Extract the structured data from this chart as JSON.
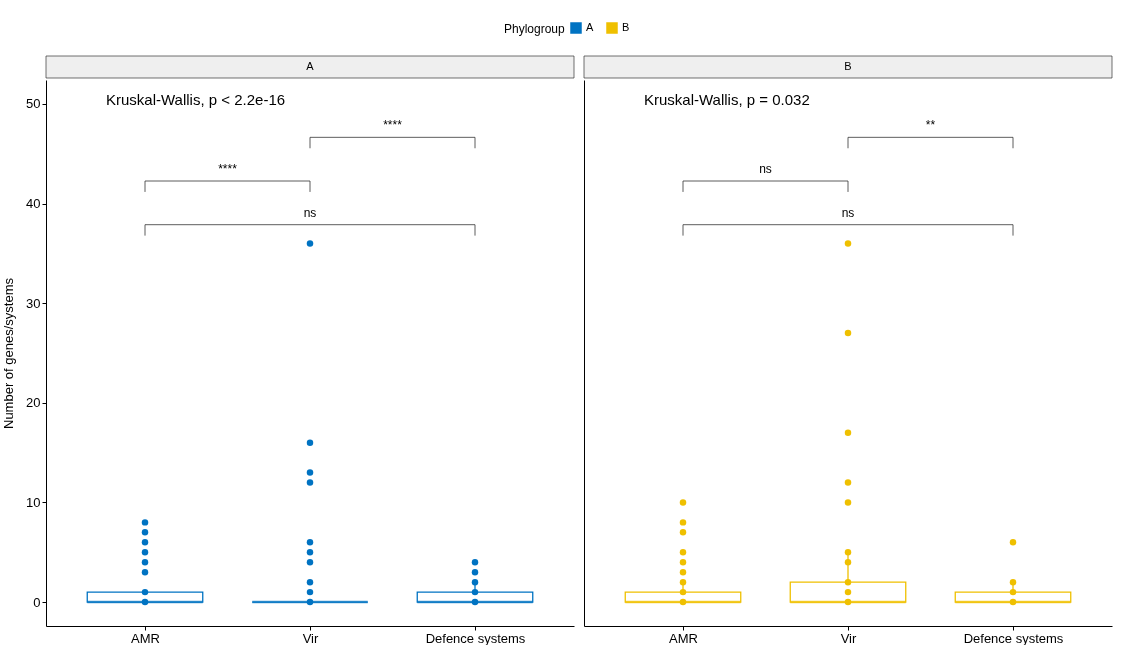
{
  "chart_data": [
    {
      "type": "box",
      "title": "A",
      "ylabel": "Number of genes/systems",
      "legend": "top",
      "legend_title": "Phylogroup",
      "categories": [
        "AMR",
        "Vir",
        "Defence systems"
      ],
      "ylim": [
        -2.4,
        52.4
      ],
      "yticks": [
        0,
        10,
        20,
        30,
        40,
        50
      ],
      "annotations": [
        "Kruskal-Wallis, p < 2.2e-16",
        "****",
        "****",
        "ns"
      ],
      "series": [
        {
          "name": "A",
          "color": "#0073c2",
          "type": "box",
          "boxes": [
            {
              "low": 0,
              "q1": 0,
              "median": 0,
              "q3": 1,
              "high": 1
            },
            {
              "low": 0,
              "q1": 0,
              "median": 0,
              "q3": 0,
              "high": 0
            },
            {
              "low": 0,
              "q1": 0,
              "median": 0,
              "q3": 1,
              "high": 2
            }
          ]
        },
        {
          "type": "scatter",
          "color": "#0073c2",
          "x": [
            "AMR",
            "AMR",
            "AMR",
            "AMR",
            "AMR",
            "AMR",
            "AMR",
            "AMR",
            "Vir",
            "Vir",
            "Vir",
            "Vir",
            "Vir",
            "Vir",
            "Vir",
            "Vir",
            "Vir",
            "Vir",
            "Defence systems",
            "Defence systems",
            "Defence systems",
            "Defence systems",
            "Defence systems"
          ],
          "values": [
            0,
            1,
            3,
            4,
            5,
            6,
            7,
            8,
            0,
            1,
            2,
            4,
            5,
            6,
            12,
            13,
            16,
            36,
            0,
            1,
            2,
            3,
            4
          ]
        }
      ]
    },
    {
      "type": "box",
      "title": "B",
      "tick_labels": "x",
      "categories": [
        "AMR",
        "Vir",
        "Defence systems"
      ],
      "ylim": [
        -2.4,
        52.4
      ],
      "yticks": [
        0,
        10,
        20,
        30,
        40,
        50
      ],
      "annotations": [
        "Kruskal-Wallis, p = 0.032",
        "ns",
        "**",
        "ns"
      ],
      "series": [
        {
          "name": "B",
          "color": "#efc000",
          "type": "box",
          "boxes": [
            {
              "low": 0,
              "q1": 0,
              "median": 0,
              "q3": 1,
              "high": 2
            },
            {
              "low": 0,
              "q1": 0,
              "median": 0,
              "q3": 2,
              "high": 5
            },
            {
              "low": 0,
              "q1": 0,
              "median": 0,
              "q3": 1,
              "high": 2
            }
          ]
        },
        {
          "type": "scatter",
          "color": "#efc000",
          "x": [
            "AMR",
            "AMR",
            "AMR",
            "AMR",
            "AMR",
            "AMR",
            "AMR",
            "AMR",
            "AMR",
            "Vir",
            "Vir",
            "Vir",
            "Vir",
            "Vir",
            "Vir",
            "Vir",
            "Vir",
            "Vir",
            "Vir",
            "Defence systems",
            "Defence systems",
            "Defence systems",
            "Defence systems"
          ],
          "values": [
            0,
            1,
            2,
            3,
            4,
            5,
            7,
            8,
            10,
            0,
            1,
            2,
            4,
            5,
            10,
            12,
            17,
            27,
            36,
            0,
            1,
            2,
            6
          ]
        }
      ]
    }
  ]
}
